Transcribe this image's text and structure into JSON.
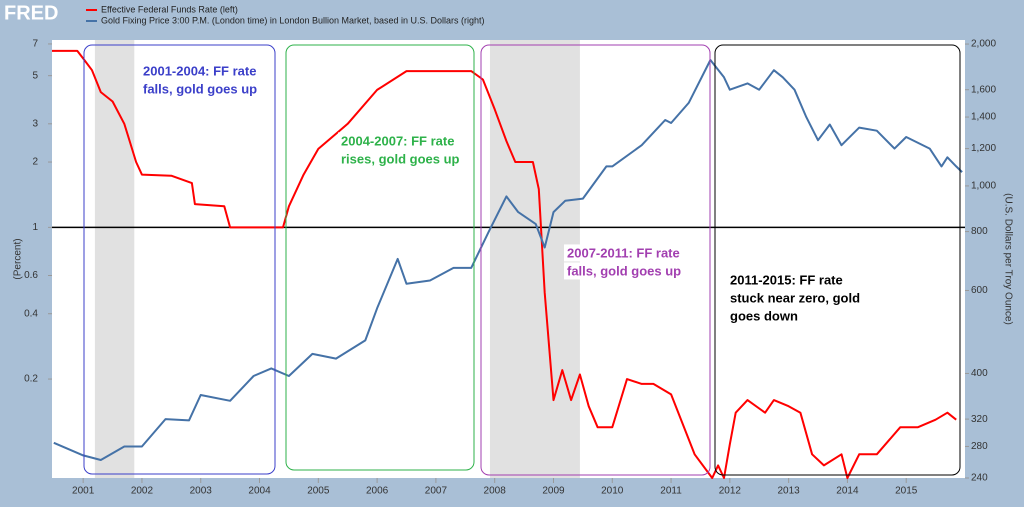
{
  "logo": "FRED",
  "chart_data": {
    "type": "line",
    "log_scale": true,
    "xlim": [
      2000.47,
      2016.0
    ],
    "xticks": [
      2001,
      2002,
      2003,
      2004,
      2005,
      2006,
      2007,
      2008,
      2009,
      2010,
      2011,
      2012,
      2013,
      2014,
      2015
    ],
    "ylim": [
      0.07,
      7.3
    ],
    "yticks": [
      0.2,
      0.4,
      0.6,
      1,
      2,
      3,
      5,
      7
    ],
    "y2lim": [
      240,
      2040
    ],
    "y2ticks": [
      240,
      280,
      320,
      400,
      600,
      800,
      {
        "value": 1000,
        "label": "1,000"
      },
      {
        "value": 1200,
        "label": "1,200"
      },
      {
        "value": 1400,
        "label": "1,400"
      },
      {
        "value": 1600,
        "label": "1,600"
      },
      {
        "value": 2000,
        "label": "2,000"
      }
    ],
    "ylabel": "(Percent)",
    "y2label": "(U.S. Dollars per Troy Ounce)",
    "reference_line": 1,
    "shaded_ranges": [
      [
        2001.2,
        2001.87
      ],
      [
        2007.92,
        2009.45
      ]
    ],
    "series": [
      {
        "name": "Effective Federal Funds Rate (left)",
        "color": "#ff0000",
        "axis": "y",
        "x": [
          2000.47,
          2000.9,
          2001.0,
          2001.15,
          2001.3,
          2001.5,
          2001.7,
          2001.9,
          2002.0,
          2002.5,
          2002.85,
          2002.9,
          2003.4,
          2003.5,
          2004.4,
          2004.5,
          2004.75,
          2005.0,
          2005.5,
          2006.0,
          2006.5,
          2007.6,
          2007.8,
          2008.0,
          2008.2,
          2008.35,
          2008.65,
          2008.75,
          2008.85,
          2009.0,
          2009.15,
          2009.3,
          2009.45,
          2009.6,
          2009.75,
          2010.0,
          2010.25,
          2010.5,
          2010.7,
          2011.0,
          2011.4,
          2011.7,
          2011.8,
          2011.9,
          2012.0,
          2012.1,
          2012.3,
          2012.6,
          2012.75,
          2013.0,
          2013.2,
          2013.4,
          2013.6,
          2013.9,
          2014.0,
          2014.2,
          2014.5,
          2014.9,
          2015.2,
          2015.5,
          2015.7,
          2015.85
        ],
        "values": [
          6.5,
          6.5,
          6.0,
          5.3,
          4.2,
          3.8,
          3.0,
          2.0,
          1.75,
          1.73,
          1.6,
          1.28,
          1.25,
          1.0,
          1.0,
          1.25,
          1.75,
          2.3,
          3.0,
          4.3,
          5.25,
          5.25,
          4.8,
          3.5,
          2.5,
          2.0,
          2.0,
          1.5,
          0.5,
          0.16,
          0.22,
          0.16,
          0.21,
          0.15,
          0.12,
          0.12,
          0.2,
          0.19,
          0.19,
          0.17,
          0.09,
          0.07,
          0.08,
          0.07,
          0.1,
          0.14,
          0.16,
          0.14,
          0.16,
          0.15,
          0.14,
          0.09,
          0.08,
          0.09,
          0.07,
          0.09,
          0.09,
          0.12,
          0.12,
          0.13,
          0.14,
          0.13
        ]
      },
      {
        "name": "Gold Fixing Price 3:00 P.M. (London time) in London Bullion Market, based in U.S. Dollars (right)",
        "color": "#4572a7",
        "axis": "y2",
        "x": [
          2000.5,
          2001.0,
          2001.3,
          2001.7,
          2002.0,
          2002.4,
          2002.8,
          2003.0,
          2003.5,
          2003.9,
          2004.2,
          2004.5,
          2004.9,
          2005.3,
          2005.8,
          2006.0,
          2006.35,
          2006.5,
          2006.9,
          2007.3,
          2007.6,
          2007.9,
          2008.2,
          2008.4,
          2008.7,
          2008.85,
          2009.0,
          2009.2,
          2009.5,
          2009.9,
          2010.0,
          2010.5,
          2010.9,
          2011.0,
          2011.3,
          2011.67,
          2011.9,
          2012.0,
          2012.3,
          2012.5,
          2012.75,
          2012.9,
          2013.1,
          2013.3,
          2013.5,
          2013.7,
          2013.9,
          2014.2,
          2014.5,
          2014.8,
          2015.0,
          2015.4,
          2015.6,
          2015.7,
          2015.85,
          2015.95
        ],
        "values": [
          285,
          268,
          262,
          280,
          280,
          320,
          318,
          360,
          350,
          395,
          410,
          395,
          440,
          430,
          470,
          550,
          700,
          620,
          630,
          670,
          670,
          800,
          950,
          880,
          830,
          740,
          880,
          930,
          940,
          1100,
          1100,
          1220,
          1380,
          1360,
          1500,
          1850,
          1700,
          1600,
          1650,
          1600,
          1760,
          1700,
          1600,
          1400,
          1250,
          1350,
          1220,
          1330,
          1310,
          1200,
          1270,
          1200,
          1100,
          1150,
          1100,
          1070
        ]
      }
    ],
    "annotations": [
      {
        "lines": [
          "2001-2004: FF rate",
          "falls, gold goes up"
        ],
        "color": "#3b3fc9"
      },
      {
        "lines": [
          "2004-2007: FF rate",
          "rises, gold goes up"
        ],
        "color": "#2eb24a"
      },
      {
        "lines": [
          "2007-2011: FF rate",
          "falls, gold goes up"
        ],
        "color": "#a23fb0"
      },
      {
        "lines": [
          "2011-2015: FF rate",
          "stuck near zero, gold",
          "goes down"
        ],
        "color": "#000000"
      }
    ]
  }
}
